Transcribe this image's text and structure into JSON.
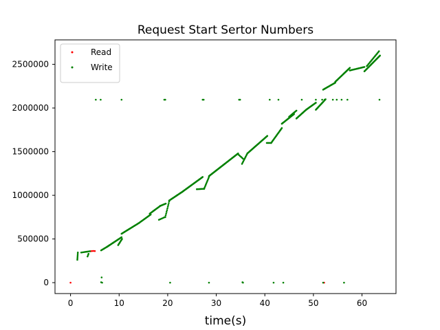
{
  "chart_data": {
    "type": "scatter",
    "title": "Request Start Sertor Numbers",
    "xlabel": "time(s)",
    "ylabel": "",
    "xlim": [
      -3.2,
      67.0
    ],
    "ylim": [
      -125000,
      2780000
    ],
    "xticks": [
      0,
      10,
      20,
      30,
      40,
      50,
      60
    ],
    "yticks": [
      0,
      500000,
      1000000,
      1500000,
      2000000,
      2500000
    ],
    "grid": false,
    "legend_position": "top-left",
    "series": [
      {
        "name": "Read",
        "color": "#ff0000",
        "points": [
          [
            0.0,
            0
          ],
          [
            4.1,
            360000
          ],
          [
            4.4,
            362000
          ],
          [
            4.7,
            363000
          ],
          [
            5.0,
            362000
          ],
          [
            52.2,
            0
          ]
        ]
      },
      {
        "name": "Write",
        "color": "#008000",
        "segments": [
          {
            "x0": 1.4,
            "y0": 262000,
            "x1": 1.5,
            "y1": 345000,
            "n": 6
          },
          {
            "x0": 2.2,
            "y0": 345000,
            "x1": 4.0,
            "y1": 360000,
            "n": 8
          },
          {
            "x0": 3.5,
            "y0": 300000,
            "x1": 3.7,
            "y1": 330000,
            "n": 3
          },
          {
            "x0": 6.3,
            "y0": 370000,
            "x1": 7.5,
            "y1": 410000,
            "n": 8
          },
          {
            "x0": 7.5,
            "y0": 410000,
            "x1": 10.5,
            "y1": 520000,
            "n": 24
          },
          {
            "x0": 9.8,
            "y0": 430000,
            "x1": 10.6,
            "y1": 500000,
            "n": 8
          },
          {
            "x0": 10.5,
            "y0": 560000,
            "x1": 14.0,
            "y1": 680000,
            "n": 24
          },
          {
            "x0": 14.0,
            "y0": 680000,
            "x1": 16.5,
            "y1": 780000,
            "n": 18
          },
          {
            "x0": 16.3,
            "y0": 790000,
            "x1": 18.5,
            "y1": 880000,
            "n": 16
          },
          {
            "x0": 18.5,
            "y0": 880000,
            "x1": 19.6,
            "y1": 905000,
            "n": 8
          },
          {
            "x0": 18.2,
            "y0": 720000,
            "x1": 19.4,
            "y1": 750000,
            "n": 6
          },
          {
            "x0": 19.5,
            "y0": 750000,
            "x1": 20.3,
            "y1": 930000,
            "n": 10
          },
          {
            "x0": 20.3,
            "y0": 940000,
            "x1": 23.0,
            "y1": 1040000,
            "n": 22
          },
          {
            "x0": 23.0,
            "y0": 1040000,
            "x1": 27.2,
            "y1": 1210000,
            "n": 34
          },
          {
            "x0": 26.0,
            "y0": 1070000,
            "x1": 27.5,
            "y1": 1075000,
            "n": 8
          },
          {
            "x0": 27.5,
            "y0": 1075000,
            "x1": 28.5,
            "y1": 1210000,
            "n": 10
          },
          {
            "x0": 28.5,
            "y0": 1220000,
            "x1": 31.5,
            "y1": 1350000,
            "n": 26
          },
          {
            "x0": 31.5,
            "y0": 1350000,
            "x1": 34.5,
            "y1": 1480000,
            "n": 24
          },
          {
            "x0": 34.5,
            "y0": 1470000,
            "x1": 35.5,
            "y1": 1420000,
            "n": 6
          },
          {
            "x0": 35.3,
            "y0": 1360000,
            "x1": 36.4,
            "y1": 1480000,
            "n": 10
          },
          {
            "x0": 36.4,
            "y0": 1480000,
            "x1": 40.5,
            "y1": 1680000,
            "n": 32
          },
          {
            "x0": 40.4,
            "y0": 1600000,
            "x1": 41.3,
            "y1": 1600000,
            "n": 6
          },
          {
            "x0": 41.3,
            "y0": 1600000,
            "x1": 43.5,
            "y1": 1770000,
            "n": 18
          },
          {
            "x0": 43.5,
            "y0": 1820000,
            "x1": 46.0,
            "y1": 1930000,
            "n": 20
          },
          {
            "x0": 45.0,
            "y0": 1900000,
            "x1": 46.5,
            "y1": 1970000,
            "n": 10
          },
          {
            "x0": 46.5,
            "y0": 1880000,
            "x1": 48.5,
            "y1": 1980000,
            "n": 16
          },
          {
            "x0": 48.5,
            "y0": 1980000,
            "x1": 50.5,
            "y1": 2060000,
            "n": 16
          },
          {
            "x0": 50.5,
            "y0": 1980000,
            "x1": 52.5,
            "y1": 2100000,
            "n": 16
          },
          {
            "x0": 52.0,
            "y0": 2210000,
            "x1": 54.5,
            "y1": 2290000,
            "n": 18
          },
          {
            "x0": 54.5,
            "y0": 2300000,
            "x1": 57.5,
            "y1": 2460000,
            "n": 24
          },
          {
            "x0": 57.5,
            "y0": 2430000,
            "x1": 60.5,
            "y1": 2470000,
            "n": 18
          },
          {
            "x0": 60.5,
            "y0": 2420000,
            "x1": 63.7,
            "y1": 2600000,
            "n": 26
          },
          {
            "x0": 61.0,
            "y0": 2480000,
            "x1": 63.5,
            "y1": 2650000,
            "n": 16
          },
          {
            "x0": 6.4,
            "y0": 60000,
            "x1": 6.5,
            "y1": 62000,
            "n": 1
          }
        ],
        "points": [
          [
            6.5,
            0
          ],
          [
            20.5,
            0
          ],
          [
            28.5,
            0
          ],
          [
            35.5,
            0
          ],
          [
            41.8,
            0
          ],
          [
            43.8,
            0
          ],
          [
            52.0,
            0
          ],
          [
            56.3,
            0
          ],
          [
            6.3,
            5000
          ],
          [
            35.4,
            4000
          ],
          [
            5.2,
            2095000
          ],
          [
            6.2,
            2095000
          ],
          [
            10.5,
            2095000
          ],
          [
            19.3,
            2095000
          ],
          [
            19.5,
            2095000
          ],
          [
            27.2,
            2095000
          ],
          [
            27.4,
            2095000
          ],
          [
            34.7,
            2095000
          ],
          [
            34.9,
            2095000
          ],
          [
            41.0,
            2095000
          ],
          [
            42.8,
            2095000
          ],
          [
            47.6,
            2095000
          ],
          [
            50.5,
            2095000
          ],
          [
            51.8,
            2095000
          ],
          [
            52.3,
            2095000
          ],
          [
            54.0,
            2095000
          ],
          [
            54.8,
            2095000
          ],
          [
            55.8,
            2095000
          ],
          [
            57.0,
            2095000
          ],
          [
            63.6,
            2095000
          ]
        ]
      }
    ]
  }
}
